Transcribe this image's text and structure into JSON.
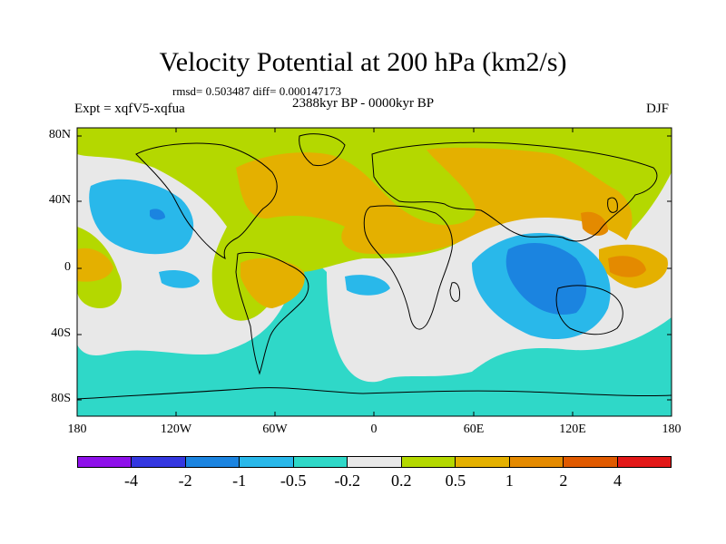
{
  "header": {
    "title": "Velocity Potential at 200 hPa (km2/s)",
    "stats": "rmsd= 0.503487 diff= 0.000147173",
    "experiment": "Expt = xqfV5-xqfua",
    "period": "2388kyr BP - 0000kyr BP",
    "season": "DJF"
  },
  "axes": {
    "y_ticks": [
      "80N",
      "40N",
      "0",
      "40S",
      "80S"
    ],
    "x_ticks": [
      "180",
      "120W",
      "60W",
      "0",
      "60E",
      "120E",
      "180"
    ]
  },
  "colorbar": {
    "colors": [
      "#8e10ea",
      "#3437e0",
      "#1b84e0",
      "#29b8ea",
      "#2fd8c8",
      "#e8e8e8",
      "#b4d800",
      "#e4b000",
      "#e48a00",
      "#e05a00",
      "#e21818"
    ],
    "labels": [
      "-4",
      "-2",
      "-1",
      "-0.5",
      "-0.2",
      "0.2",
      "0.5",
      "1",
      "2",
      "4"
    ]
  },
  "map_legend": {
    "background_class": "#2fd8c8",
    "land_outline": "#000000"
  }
}
